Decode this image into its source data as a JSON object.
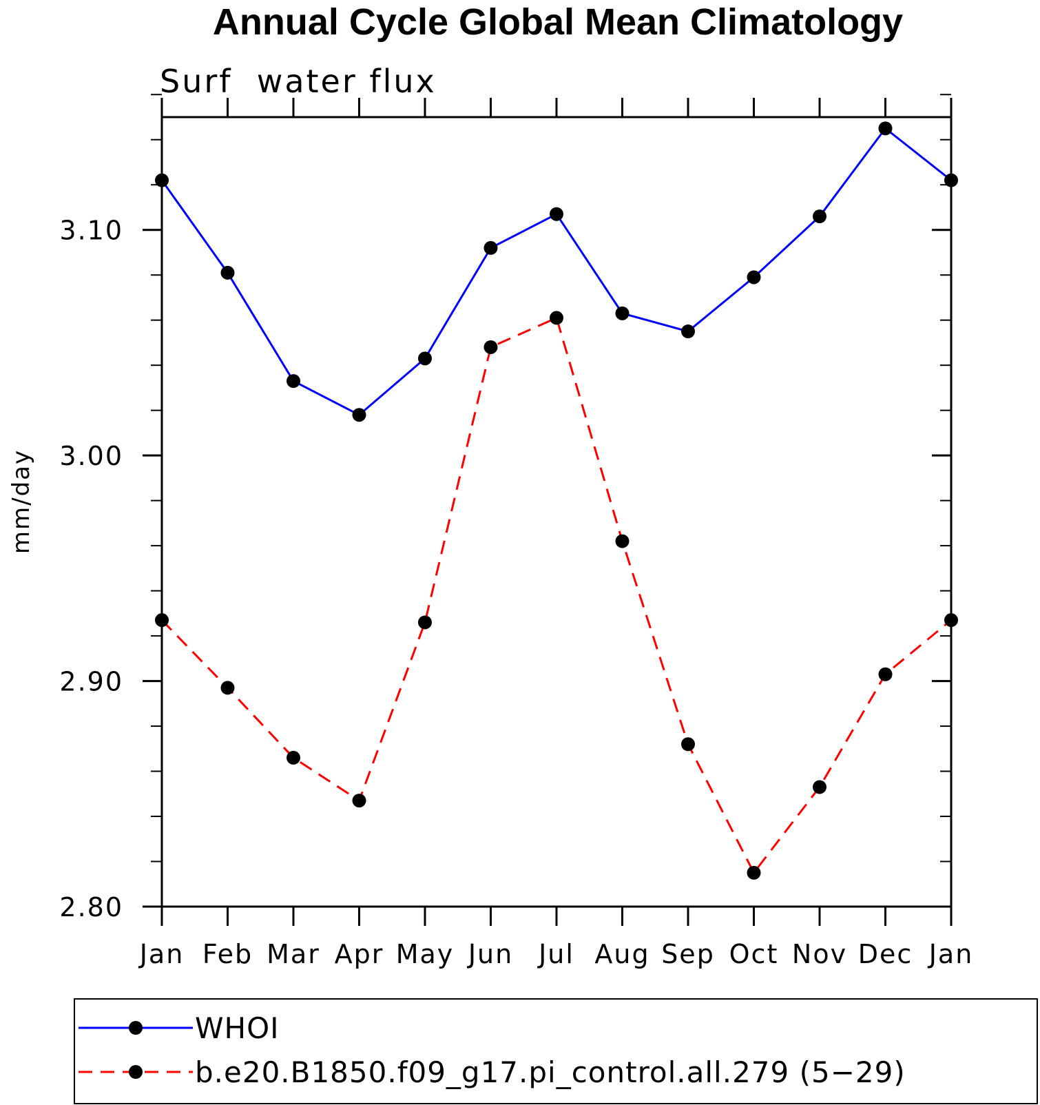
{
  "chart_data": {
    "type": "line",
    "title": "Annual Cycle Global Mean Climatology",
    "subtitle": "Surf  water flux",
    "xlabel": "",
    "ylabel": "mm/day",
    "categories": [
      "Jan",
      "Feb",
      "Mar",
      "Apr",
      "May",
      "Jun",
      "Jul",
      "Aug",
      "Sep",
      "Oct",
      "Nov",
      "Dec",
      "Jan"
    ],
    "ylim": [
      2.8,
      3.15
    ],
    "yticks": [
      2.8,
      2.9,
      3.0,
      3.1
    ],
    "ytick_labels": [
      "2.80",
      "2.90",
      "3.00",
      "3.10"
    ],
    "yminor_step": 0.02,
    "series": [
      {
        "name": "WHOI",
        "color": "#0000ff",
        "dash": "solid",
        "marker": "filled-circle",
        "values": [
          3.122,
          3.081,
          3.033,
          3.018,
          3.043,
          3.092,
          3.107,
          3.063,
          3.055,
          3.079,
          3.106,
          3.145,
          3.122
        ]
      },
      {
        "name": "b.e20.B1850.f09_g17.pi_control.all.279 (5−29)",
        "color": "#ff0000",
        "dash": "dashed",
        "marker": "filled-circle",
        "values": [
          2.927,
          2.897,
          2.866,
          2.847,
          2.926,
          3.048,
          3.061,
          2.962,
          2.872,
          2.815,
          2.853,
          2.903,
          2.927
        ]
      }
    ],
    "legend": {
      "placement": "bottom"
    }
  }
}
